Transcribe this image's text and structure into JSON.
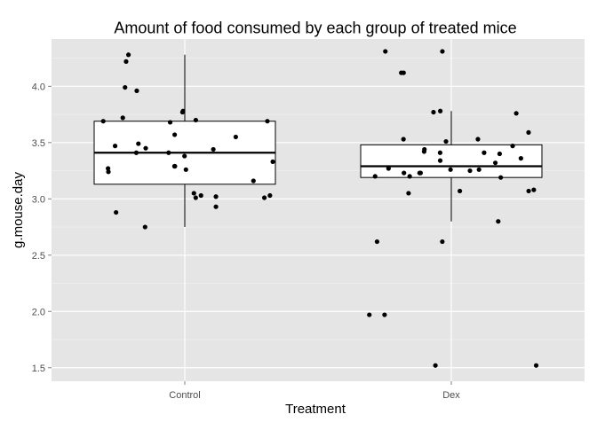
{
  "chart_data": {
    "type": "boxplot",
    "title": "Amount of food consumed by each group of treated mice",
    "xlabel": "Treatment",
    "ylabel": "g.mouse.day",
    "categories": [
      "Control",
      "Dex"
    ],
    "ylim": [
      1.38,
      4.42
    ],
    "yticks": [
      1.5,
      2.0,
      2.5,
      3.0,
      3.5,
      4.0
    ],
    "ytick_labels": [
      "1.5",
      "2.0",
      "2.5",
      "3.0",
      "3.5",
      "4.0"
    ],
    "grid": true,
    "legend": "none",
    "boxes": [
      {
        "category": "Control",
        "min": 2.75,
        "q1": 3.13,
        "median": 3.41,
        "q3": 3.69,
        "max": 4.28
      },
      {
        "category": "Dex",
        "min": 2.8,
        "q1": 3.19,
        "median": 3.29,
        "q3": 3.48,
        "max": 3.78
      }
    ],
    "points": [
      {
        "category": "Control",
        "y": [
          3.78,
          3.7,
          3.47,
          3.49,
          3.29,
          3.26,
          3.24,
          3.16,
          3.03,
          3.41,
          3.45,
          3.55,
          3.44,
          3.27,
          3.38,
          3.96,
          2.93,
          3.72,
          3.01,
          3.77,
          4.22,
          3.69,
          3.01,
          3.03,
          2.88,
          3.57,
          3.69,
          4.28,
          3.68,
          3.05,
          3.02,
          2.75,
          3.99,
          3.33,
          3.29,
          3.41
        ]
      },
      {
        "category": "Dex",
        "y": [
          3.07,
          3.23,
          3.27,
          3.19,
          3.44,
          3.42,
          3.2,
          3.59,
          3.23,
          3.36,
          3.51,
          3.53,
          3.25,
          3.77,
          2.8,
          3.26,
          4.31,
          4.12,
          2.62,
          2.62,
          1.97,
          1.52,
          3.41,
          3.53,
          3.08,
          3.23,
          3.41,
          3.26,
          3.34,
          3.47,
          4.31,
          3.78,
          3.05,
          4.12,
          3.32,
          1.97,
          3.2,
          3.4,
          3.76,
          1.52,
          3.07
        ]
      }
    ],
    "colors": {
      "panel": "#e5e5e5",
      "grid": "#ffffff",
      "box_fill": "#ffffff",
      "box_stroke": "#000000",
      "point": "#000000"
    }
  }
}
